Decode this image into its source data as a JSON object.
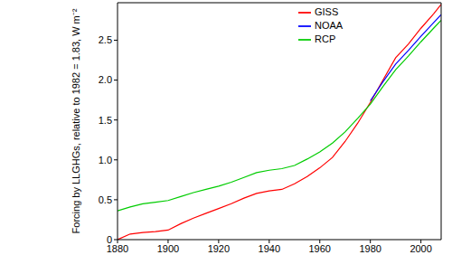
{
  "chart_data": {
    "type": "line",
    "ylabel": "Forcing by LLGHGs, relative to 1982 = 1.83, W m⁻²",
    "x": [
      1880,
      1885,
      1890,
      1895,
      1900,
      1905,
      1910,
      1915,
      1920,
      1925,
      1930,
      1935,
      1940,
      1945,
      1950,
      1955,
      1960,
      1965,
      1970,
      1975,
      1980,
      1985,
      1990,
      1995,
      2000,
      2005,
      2008
    ],
    "series": [
      {
        "name": "GISS",
        "color": "#ff0000",
        "values": [
          0.0,
          0.07,
          0.09,
          0.1,
          0.12,
          0.2,
          0.27,
          0.33,
          0.39,
          0.45,
          0.52,
          0.58,
          0.61,
          0.63,
          0.7,
          0.79,
          0.9,
          1.03,
          1.23,
          1.46,
          1.72,
          2.0,
          2.28,
          2.45,
          2.65,
          2.83,
          2.95
        ]
      },
      {
        "name": "NOAA",
        "color": "#0000ff",
        "values": [
          null,
          null,
          null,
          null,
          null,
          null,
          null,
          null,
          null,
          null,
          null,
          null,
          null,
          null,
          null,
          null,
          null,
          null,
          null,
          null,
          1.74,
          1.98,
          2.2,
          2.37,
          2.55,
          2.72,
          2.82
        ]
      },
      {
        "name": "RCP",
        "color": "#00cc00",
        "values": [
          0.36,
          0.41,
          0.45,
          0.47,
          0.49,
          0.54,
          0.59,
          0.63,
          0.67,
          0.72,
          0.78,
          0.84,
          0.87,
          0.89,
          0.93,
          1.01,
          1.1,
          1.21,
          1.35,
          1.52,
          1.7,
          1.92,
          2.13,
          2.3,
          2.48,
          2.65,
          2.75
        ]
      }
    ],
    "xlim": [
      1880,
      2008
    ],
    "xticks": [
      1880,
      1900,
      1920,
      1940,
      1960,
      1980,
      2000
    ],
    "ylim": [
      0,
      2.97
    ],
    "yticks": [
      0,
      0.5,
      {
        "value": 1,
        "label": "1.0"
      },
      1.5,
      {
        "value": 2,
        "label": "2.0"
      },
      2.5
    ],
    "legend": "upper right",
    "grid": false
  }
}
